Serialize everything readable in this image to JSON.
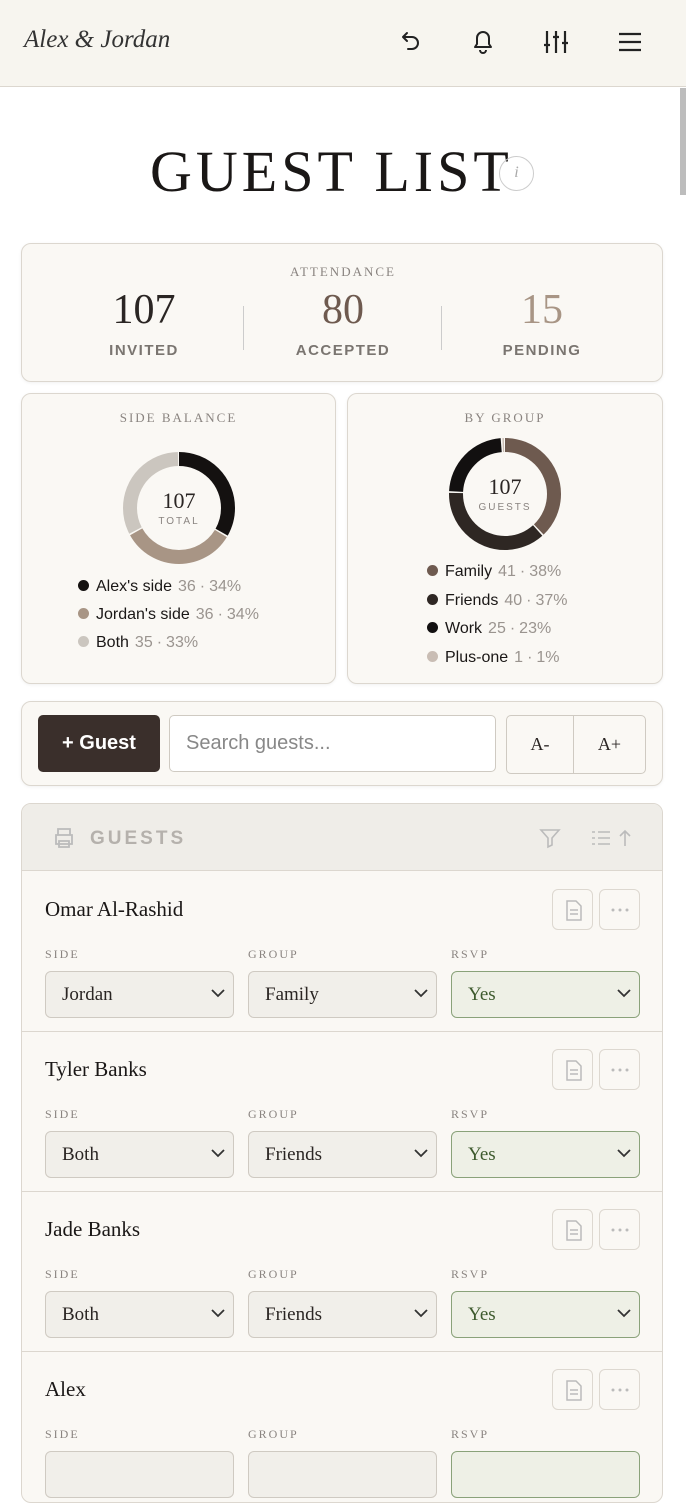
{
  "header": {
    "logo": "Alex & Jordan"
  },
  "title": "GUEST LIST",
  "info": "i",
  "attendance": {
    "label": "ATTENDANCE",
    "stats": [
      {
        "value": 107,
        "label": "INVITED",
        "color": "#2a2523"
      },
      {
        "value": 80,
        "label": "ACCEPTED",
        "color": "#6e5a4f"
      },
      {
        "value": 15,
        "label": "PENDING",
        "color": "#a89585"
      }
    ]
  },
  "side_balance": {
    "title": "SIDE BALANCE",
    "total": 107,
    "total_label": "TOTAL",
    "separator": "·",
    "items": [
      {
        "name": "Alex's side",
        "count": 36,
        "share": "34%",
        "color": "#141110"
      },
      {
        "name": "Jordan's side",
        "count": 36,
        "share": "34%",
        "color": "#a89585"
      },
      {
        "name": "Both",
        "count": 35,
        "share": "33%",
        "color": "#cbc6bf"
      }
    ]
  },
  "by_group": {
    "title": "BY GROUP",
    "total": 107,
    "total_label": "GUESTS",
    "separator": "·",
    "items": [
      {
        "name": "Family",
        "count": 41,
        "share": "38%",
        "color": "#6e5a4f"
      },
      {
        "name": "Friends",
        "count": 40,
        "share": "37%",
        "color": "#2e2723"
      },
      {
        "name": "Work",
        "count": 25,
        "share": "23%",
        "color": "#121010"
      },
      {
        "name": "Plus-one",
        "count": 1,
        "share": "1%",
        "color": "#c9bdb4"
      }
    ]
  },
  "toolbar": {
    "add_button": "+ Guest",
    "search_placeholder": "Search guests...",
    "font_smaller": "A-",
    "font_larger": "A+"
  },
  "list": {
    "title": "GUESTS",
    "field_labels": [
      "SIDE",
      "GROUP",
      "RSVP"
    ],
    "guests": [
      {
        "name": "Omar Al-Rashid",
        "fields": [
          "Jordan",
          "Family",
          "Yes"
        ]
      },
      {
        "name": "Tyler Banks",
        "fields": [
          "Both",
          "Friends",
          "Yes"
        ]
      },
      {
        "name": "Jade Banks",
        "fields": [
          "Both",
          "Friends",
          "Yes"
        ]
      },
      {
        "name": "Alex",
        "fields": []
      }
    ]
  }
}
